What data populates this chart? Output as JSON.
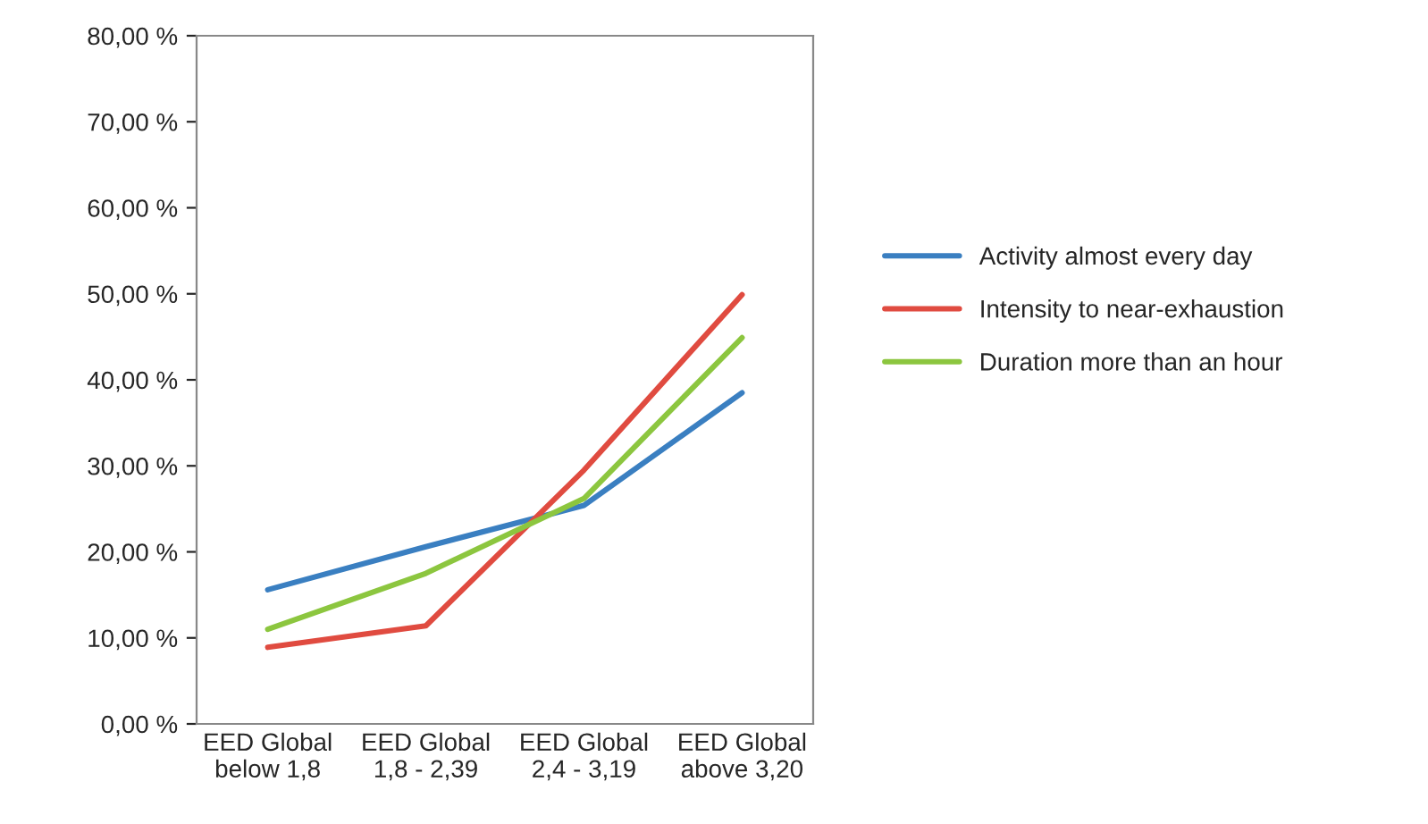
{
  "chart_data": {
    "type": "line",
    "categories": [
      "EED Global\nbelow 1,8",
      "EED Global\n1,8 - 2,39",
      "EED Global\n2,4 - 3,19",
      "EED Global\nabove 3,20"
    ],
    "series": [
      {
        "name": "Activity almost every day",
        "color": "#3a7fc1",
        "values": [
          15.6,
          20.6,
          25.4,
          38.5
        ]
      },
      {
        "name": "Intensity to near-exhaustion",
        "color": "#e04b40",
        "values": [
          8.9,
          11.4,
          29.5,
          49.9
        ]
      },
      {
        "name": "Duration more than an hour",
        "color": "#8cc63f",
        "values": [
          11.0,
          17.5,
          26.2,
          44.9
        ]
      }
    ],
    "ylim": [
      0,
      80
    ],
    "yticks": [
      {
        "value": 0,
        "label": "0,00 %"
      },
      {
        "value": 10,
        "label": "10,00 %"
      },
      {
        "value": 20,
        "label": "20,00 %"
      },
      {
        "value": 30,
        "label": "30,00 %"
      },
      {
        "value": 40,
        "label": "40,00 %"
      },
      {
        "value": 50,
        "label": "50,00 %"
      },
      {
        "value": 60,
        "label": "60,00 %"
      },
      {
        "value": 70,
        "label": "70,00 %"
      },
      {
        "value": 80,
        "label": "80,00 %"
      }
    ],
    "grid": false,
    "legend": "right",
    "marker": "none",
    "line_style": "solid"
  }
}
